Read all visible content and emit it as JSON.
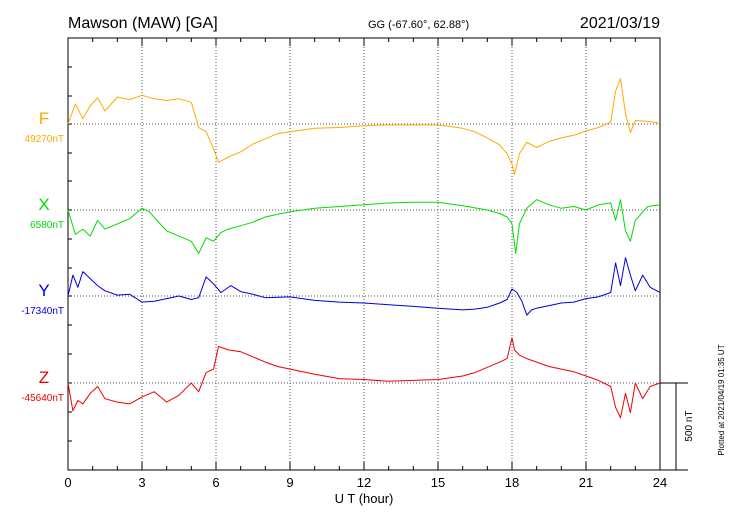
{
  "header": {
    "station": "Mawson (MAW)  [GA]",
    "coords": "GG (-67.60°,  62.88°)",
    "date": "2021/03/19"
  },
  "xaxis": {
    "label": "U T (hour)",
    "ticks": [
      "0",
      "3",
      "6",
      "9",
      "12",
      "15",
      "18",
      "21",
      "24"
    ]
  },
  "scale_bar": {
    "label": "500 nT",
    "value_nT": 500
  },
  "plotted_note": "Plotted at 2021/04/19 01:35 UT",
  "colors": {
    "F": "#ffaa00",
    "X": "#00dd00",
    "Y": "#0000dd",
    "Z": "#ee0000"
  },
  "chart_data": {
    "type": "line",
    "x_unit": "hour UT",
    "xlim": [
      0,
      24
    ],
    "y_unit": "nT",
    "series": [
      {
        "name": "F",
        "baseline_label": "49270nT",
        "baseline": 49270,
        "x": [
          0,
          0.3,
          0.6,
          0.9,
          1.2,
          1.5,
          2,
          2.5,
          3,
          3.5,
          4,
          4.5,
          5,
          5.3,
          5.6,
          5.9,
          6.1,
          6.5,
          7,
          7.5,
          8,
          8.5,
          9,
          10,
          11,
          12,
          13,
          14,
          15,
          16,
          16.5,
          17,
          17.5,
          17.8,
          18.0,
          18.1,
          18.3,
          18.6,
          19,
          19.5,
          20,
          20.5,
          21,
          21.5,
          22,
          22.2,
          22.4,
          22.6,
          22.8,
          23,
          23.5,
          24
        ],
        "y": [
          49270,
          49385,
          49300,
          49375,
          49420,
          49345,
          49425,
          49410,
          49435,
          49415,
          49405,
          49415,
          49395,
          49250,
          49225,
          49130,
          49050,
          49080,
          49110,
          49155,
          49185,
          49215,
          49225,
          49245,
          49250,
          49260,
          49265,
          49265,
          49265,
          49245,
          49225,
          49190,
          49150,
          49100,
          49040,
          48980,
          49100,
          49165,
          49135,
          49170,
          49190,
          49205,
          49230,
          49250,
          49280,
          49460,
          49530,
          49330,
          49220,
          49290,
          49285,
          49275
        ]
      },
      {
        "name": "X",
        "baseline_label": "6580nT",
        "baseline": 6580,
        "x": [
          0,
          0.3,
          0.6,
          0.9,
          1.2,
          1.5,
          2,
          2.5,
          3,
          3.3,
          3.6,
          4,
          4.5,
          5,
          5.3,
          5.6,
          5.9,
          6.2,
          6.5,
          7,
          7.5,
          8,
          8.5,
          9,
          10,
          11,
          12,
          13,
          14,
          15,
          16,
          17,
          17.5,
          17.8,
          18.0,
          18.15,
          18.3,
          18.6,
          19,
          19.5,
          20,
          20.5,
          21,
          21.5,
          22,
          22.2,
          22.4,
          22.6,
          22.8,
          23,
          23.5,
          24
        ],
        "y": [
          6580,
          6440,
          6470,
          6430,
          6520,
          6470,
          6500,
          6530,
          6590,
          6570,
          6520,
          6460,
          6430,
          6400,
          6330,
          6420,
          6400,
          6450,
          6470,
          6490,
          6510,
          6540,
          6555,
          6570,
          6590,
          6600,
          6610,
          6620,
          6625,
          6625,
          6605,
          6580,
          6560,
          6540,
          6500,
          6330,
          6500,
          6590,
          6640,
          6610,
          6590,
          6600,
          6580,
          6610,
          6620,
          6520,
          6640,
          6460,
          6400,
          6520,
          6600,
          6610
        ]
      },
      {
        "name": "Y",
        "baseline_label": "-17340nT",
        "baseline": -17340,
        "x": [
          0,
          0.2,
          0.4,
          0.6,
          0.9,
          1.2,
          1.5,
          2,
          2.5,
          3,
          3.5,
          4,
          4.5,
          5,
          5.3,
          5.6,
          5.9,
          6.2,
          6.6,
          7,
          7.5,
          8,
          9,
          10,
          11,
          12,
          13,
          14,
          15,
          16,
          16.5,
          17,
          17.5,
          17.8,
          18.0,
          18.2,
          18.4,
          18.6,
          18.8,
          19,
          19.5,
          20,
          20.5,
          21,
          21.5,
          22,
          22.2,
          22.4,
          22.6,
          22.8,
          23,
          23.3,
          23.6,
          24
        ],
        "y": [
          -17340,
          -17220,
          -17290,
          -17200,
          -17240,
          -17280,
          -17310,
          -17335,
          -17330,
          -17375,
          -17370,
          -17355,
          -17340,
          -17360,
          -17350,
          -17230,
          -17270,
          -17320,
          -17280,
          -17315,
          -17330,
          -17350,
          -17345,
          -17365,
          -17375,
          -17380,
          -17390,
          -17400,
          -17410,
          -17420,
          -17415,
          -17405,
          -17380,
          -17360,
          -17300,
          -17320,
          -17370,
          -17450,
          -17420,
          -17410,
          -17395,
          -17380,
          -17375,
          -17355,
          -17345,
          -17320,
          -17150,
          -17280,
          -17120,
          -17220,
          -17310,
          -17220,
          -17290,
          -17320
        ]
      },
      {
        "name": "Z",
        "baseline_label": "-45640nT",
        "baseline": -45640,
        "x": [
          0,
          0.2,
          0.4,
          0.6,
          0.9,
          1.2,
          1.5,
          2,
          2.5,
          3,
          3.5,
          4,
          4.5,
          5,
          5.3,
          5.6,
          5.9,
          6.1,
          6.5,
          7,
          7.5,
          8,
          8.5,
          9,
          10,
          11,
          12,
          13,
          14,
          15,
          16,
          16.5,
          17,
          17.5,
          17.8,
          18.0,
          18.1,
          18.3,
          18.6,
          19,
          19.5,
          20,
          20.5,
          21,
          21.5,
          22,
          22.2,
          22.4,
          22.6,
          22.8,
          23,
          23.3,
          23.6,
          24
        ],
        "y": [
          -45640,
          -45800,
          -45740,
          -45760,
          -45700,
          -45660,
          -45730,
          -45750,
          -45760,
          -45720,
          -45690,
          -45750,
          -45710,
          -45640,
          -45690,
          -45580,
          -45560,
          -45430,
          -45450,
          -45460,
          -45490,
          -45520,
          -45545,
          -45560,
          -45590,
          -45615,
          -45620,
          -45630,
          -45625,
          -45620,
          -45600,
          -45580,
          -45550,
          -45520,
          -45500,
          -45380,
          -45450,
          -45480,
          -45500,
          -45520,
          -45545,
          -45560,
          -45575,
          -45600,
          -45625,
          -45660,
          -45780,
          -45840,
          -45700,
          -45810,
          -45640,
          -45730,
          -45660,
          -45640
        ]
      }
    ]
  }
}
